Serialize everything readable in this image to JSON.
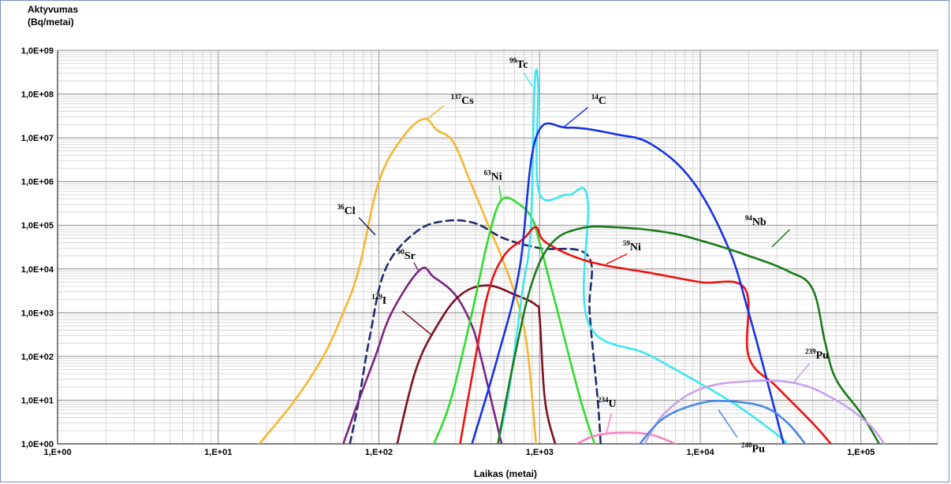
{
  "chart_data": {
    "type": "line",
    "ylabel_lines": [
      "Aktyvumas",
      "(Bq/metai)"
    ],
    "xlabel": "Laikas (metai)",
    "x_scale": "log",
    "y_scale": "log",
    "xlim": [
      1,
      300000
    ],
    "ylim": [
      1,
      1000000000
    ],
    "x_ticks": [
      "1,E+00",
      "1,E+01",
      "1,E+02",
      "1,E+03",
      "1,E+04",
      "1,E+05"
    ],
    "y_ticks": [
      "1,0E+00",
      "1,0E+01",
      "1,0E+02",
      "1,0E+03",
      "1,0E+04",
      "1,0E+05",
      "1,0E+06",
      "1,0E+07",
      "1,0E+08",
      "1,0E+09"
    ],
    "grid": true,
    "series": [
      {
        "name": "137Cs",
        "sup": "137",
        "sym": "Cs",
        "color": "#f5b730",
        "dash": "",
        "points": [
          [
            18,
            1
          ],
          [
            30,
            10
          ],
          [
            45,
            100
          ],
          [
            60,
            1000
          ],
          [
            75,
            10000
          ],
          [
            100,
            1000000
          ],
          [
            140,
            10000000
          ],
          [
            190,
            27000000
          ],
          [
            230,
            15000000
          ],
          [
            290,
            8000000
          ],
          [
            370,
            1000000
          ],
          [
            480,
            100000
          ],
          [
            620,
            10000
          ],
          [
            760,
            1000
          ],
          [
            850,
            100
          ],
          [
            950,
            1
          ]
        ]
      },
      {
        "name": "36Cl",
        "sup": "36",
        "sym": "Cl",
        "color": "#1f2d6b",
        "dash": "9,6",
        "points": [
          [
            66,
            1
          ],
          [
            75,
            10
          ],
          [
            88,
            300
          ],
          [
            110,
            10000
          ],
          [
            170,
            70000
          ],
          [
            260,
            125000
          ],
          [
            400,
            110000
          ],
          [
            600,
            50000
          ],
          [
            1000,
            30000
          ],
          [
            2000,
            20000
          ],
          [
            2050,
            1000
          ],
          [
            2300,
            10
          ],
          [
            2400,
            1
          ]
        ]
      },
      {
        "name": "90Sr",
        "sup": "90",
        "sym": "Sr",
        "color": "#7a2580",
        "dash": "",
        "points": [
          [
            60,
            1
          ],
          [
            75,
            10
          ],
          [
            95,
            100
          ],
          [
            120,
            1000
          ],
          [
            180,
            9500
          ],
          [
            220,
            6500
          ],
          [
            300,
            2500
          ],
          [
            380,
            500
          ],
          [
            430,
            100
          ],
          [
            500,
            10
          ],
          [
            580,
            1
          ]
        ]
      },
      {
        "name": "129I",
        "sup": "129",
        "sym": "I",
        "color": "#7b1020",
        "dash": "",
        "points": [
          [
            130,
            1
          ],
          [
            170,
            50
          ],
          [
            230,
            500
          ],
          [
            320,
            2500
          ],
          [
            470,
            4200
          ],
          [
            700,
            2600
          ],
          [
            950,
            1500
          ],
          [
            1000,
            800
          ],
          [
            1080,
            10
          ],
          [
            1250,
            1
          ]
        ]
      },
      {
        "name": "63Ni",
        "sup": "63",
        "sym": "Ni",
        "color": "#2edc2e",
        "dash": "",
        "points": [
          [
            220,
            1
          ],
          [
            280,
            10
          ],
          [
            380,
            1000
          ],
          [
            480,
            50000
          ],
          [
            580,
            380000
          ],
          [
            750,
            300000
          ],
          [
            900,
            140000
          ],
          [
            1000,
            40000
          ],
          [
            1300,
            1000
          ],
          [
            1800,
            10
          ],
          [
            2200,
            1
          ]
        ]
      },
      {
        "name": "99Tc",
        "sup": "99",
        "sym": "Tc",
        "color": "#3fe6f2",
        "dash": "",
        "points": [
          [
            550,
            1
          ],
          [
            650,
            20
          ],
          [
            780,
            3000
          ],
          [
            880,
            80000
          ],
          [
            930,
            150000000
          ],
          [
            980,
            150000000
          ],
          [
            990,
            600000
          ],
          [
            1500,
            500000
          ],
          [
            1990,
            400000
          ],
          [
            2010,
            600
          ],
          [
            5000,
            100
          ],
          [
            15000,
            10
          ],
          [
            28000,
            2
          ],
          [
            35000,
            1
          ]
        ]
      },
      {
        "name": "59Ni",
        "sup": "59",
        "sym": "Ni",
        "color": "#f01010",
        "dash": "",
        "points": [
          [
            320,
            1
          ],
          [
            400,
            100
          ],
          [
            480,
            3000
          ],
          [
            600,
            20000
          ],
          [
            800,
            50000
          ],
          [
            950,
            90000
          ],
          [
            1100,
            40000
          ],
          [
            2000,
            15000
          ],
          [
            5000,
            8000
          ],
          [
            10000,
            5000
          ],
          [
            19000,
            3500
          ],
          [
            20000,
            100
          ],
          [
            30000,
            20
          ],
          [
            50000,
            3
          ],
          [
            65000,
            1
          ]
        ]
      },
      {
        "name": "14C",
        "sup": "14",
        "sym": "C",
        "color": "#1832e6",
        "dash": "",
        "points": [
          [
            380,
            1
          ],
          [
            550,
            100
          ],
          [
            750,
            10000
          ],
          [
            950,
            10000000
          ],
          [
            1500,
            17000000
          ],
          [
            3000,
            12000000
          ],
          [
            5000,
            7000000
          ],
          [
            9000,
            1000000
          ],
          [
            15000,
            30000
          ],
          [
            20000,
            1000
          ],
          [
            25000,
            50
          ],
          [
            33000,
            1
          ]
        ]
      },
      {
        "name": "94Nb",
        "sup": "94",
        "sym": "Nb",
        "color": "#1b7a1b",
        "dash": "",
        "points": [
          [
            550,
            1
          ],
          [
            700,
            100
          ],
          [
            900,
            5000
          ],
          [
            1200,
            40000
          ],
          [
            1800,
            85000
          ],
          [
            3000,
            90000
          ],
          [
            6000,
            70000
          ],
          [
            10000,
            45000
          ],
          [
            20000,
            20000
          ],
          [
            35000,
            9000
          ],
          [
            50000,
            3500
          ],
          [
            60000,
            200
          ],
          [
            70000,
            30
          ],
          [
            100000,
            5
          ],
          [
            130000,
            1
          ]
        ]
      },
      {
        "name": "234U",
        "sup": "234",
        "sym": "U",
        "color": "#f585c0",
        "dash": "",
        "points": [
          [
            1700,
            1
          ],
          [
            2300,
            1.6
          ],
          [
            3500,
            1.8
          ],
          [
            5000,
            1.6
          ],
          [
            7000,
            1
          ]
        ]
      },
      {
        "name": "239Pu",
        "sup": "239",
        "sym": "Pu",
        "color": "#c8a2ec",
        "dash": "",
        "points": [
          [
            4500,
            1
          ],
          [
            6000,
            5
          ],
          [
            10000,
            18
          ],
          [
            20000,
            27
          ],
          [
            40000,
            24
          ],
          [
            70000,
            10
          ],
          [
            110000,
            3
          ],
          [
            140000,
            1
          ]
        ]
      },
      {
        "name": "240Pu",
        "sup": "240",
        "sym": "Pu",
        "color": "#4a88e6",
        "dash": "",
        "points": [
          [
            4200,
            1
          ],
          [
            6000,
            4
          ],
          [
            10000,
            8.5
          ],
          [
            15000,
            9.5
          ],
          [
            25000,
            7
          ],
          [
            35000,
            3
          ],
          [
            45000,
            1
          ]
        ]
      }
    ],
    "labels": [
      {
        "series": "137Cs",
        "x": 280,
        "y": 60000000
      },
      {
        "series": "36Cl",
        "x": 55,
        "y": 180000
      },
      {
        "series": "90Sr",
        "x": 130,
        "y": 17000
      },
      {
        "series": "129I",
        "x": 90,
        "y": 1600
      },
      {
        "series": "63Ni",
        "x": 450,
        "y": 1100000
      },
      {
        "series": "99Tc",
        "x": 650,
        "y": 400000000
      },
      {
        "series": "59Ni",
        "x": 3300,
        "y": 27000
      },
      {
        "series": "14C",
        "x": 2100,
        "y": 60000000
      },
      {
        "series": "94Nb",
        "x": 19000,
        "y": 100000
      },
      {
        "series": "234U",
        "x": 2300,
        "y": 7
      },
      {
        "series": "239Pu",
        "x": 45000,
        "y": 90
      },
      {
        "series": "240Pu",
        "x": 18000,
        "y": 0.65
      }
    ]
  }
}
